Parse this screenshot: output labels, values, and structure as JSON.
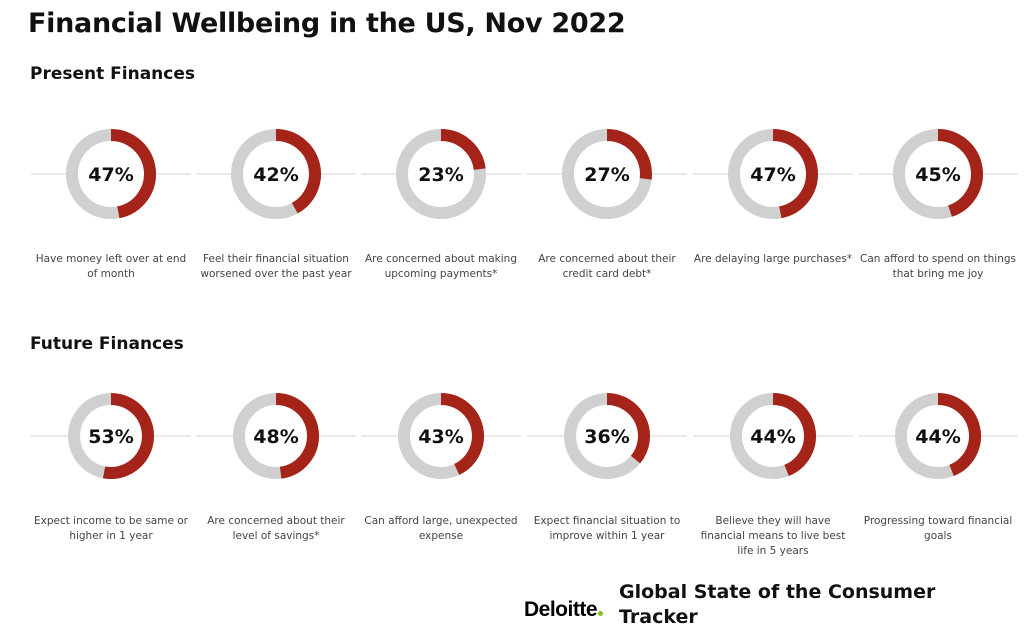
{
  "title": "Financial Wellbeing in the US, Nov 2022",
  "footer": {
    "logo_text": "Deloitte",
    "tracker_title": "Global State of the Consumer Tracker"
  },
  "colors": {
    "accent": "#A5241A",
    "track": "#D0D0D0",
    "line": "#DDDDDD",
    "logo_dot": "#86BC25"
  },
  "chart_data": [
    {
      "type": "pie",
      "subtype": "donut",
      "title": "Present Finances",
      "items": [
        {
          "label": "Have money left over at end of month",
          "value": 47,
          "display": "47%"
        },
        {
          "label": "Feel their financial situation worsened over the past year",
          "value": 42,
          "display": "42%"
        },
        {
          "label": "Are concerned about making upcoming payments*",
          "value": 23,
          "display": "23%"
        },
        {
          "label": "Are concerned about their credit card debt*",
          "value": 27,
          "display": "27%"
        },
        {
          "label": "Are delaying large purchases*",
          "value": 47,
          "display": "47%"
        },
        {
          "label": "Can afford to spend on things that bring me joy",
          "value": 45,
          "display": "45%"
        }
      ]
    },
    {
      "type": "pie",
      "subtype": "donut",
      "title": "Future Finances",
      "items": [
        {
          "label": "Expect income to be same or higher in 1 year",
          "value": 53,
          "display": "53%"
        },
        {
          "label": "Are concerned about their level of savings*",
          "value": 48,
          "display": "48%"
        },
        {
          "label": "Can afford large, unexpected expense",
          "value": 43,
          "display": "43%"
        },
        {
          "label": "Expect financial situation to improve within 1 year",
          "value": 36,
          "display": "36%"
        },
        {
          "label": "Believe they will have financial means to live best life in 5 years",
          "value": 44,
          "display": "44%"
        },
        {
          "label": "Progressing toward financial goals",
          "value": 44,
          "display": "44%"
        }
      ]
    }
  ]
}
